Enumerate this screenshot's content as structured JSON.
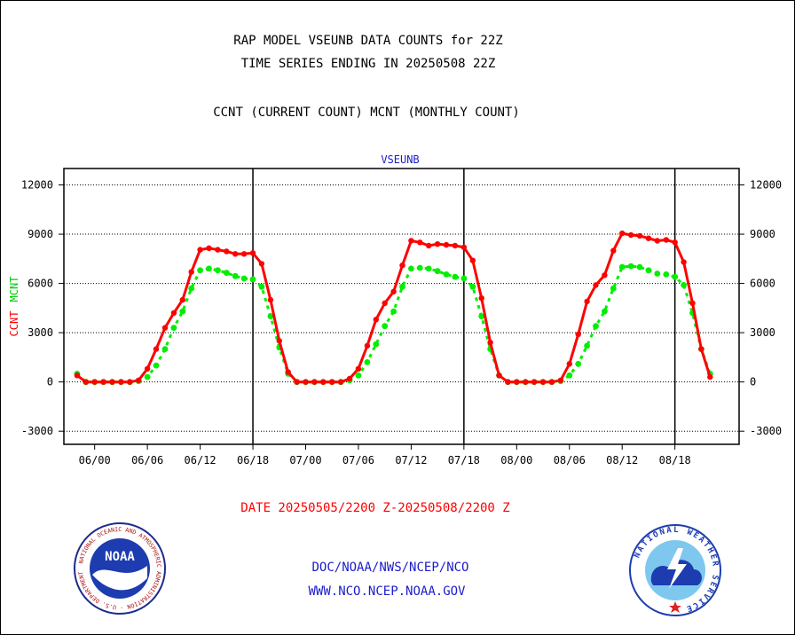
{
  "header": {
    "title_line1": "RAP MODEL VSEUNB DATA COUNTS for 22Z",
    "title_line2": "TIME SERIES ENDING IN 20250508 22Z",
    "subtitle": "CCNT (CURRENT COUNT) MCNT (MONTHLY COUNT)"
  },
  "footer": {
    "date_range": "DATE 20250505/2200 Z-20250508/2200 Z",
    "org": "DOC/NOAA/NWS/NCEP/NCO",
    "website": "WWW.NCO.NCEP.NOAA.GOV"
  },
  "logos": {
    "noaa": {
      "text": "NOAA",
      "ring_text": "NATIONAL OCEANIC AND ATMOSPHERIC ADMINISTRATION · U.S. DEPARTMENT OF COMMERCE"
    },
    "nws": {
      "ring_text": "NATIONAL WEATHER SERVICE"
    }
  },
  "colors": {
    "ccnt": "#ff0000",
    "mcnt": "#00ee00",
    "title_blue": "#1c1ccc",
    "grid": "#000000"
  },
  "chart_data": {
    "type": "line",
    "title": "VSEUNB",
    "ylabel_left": {
      "ccnt": "CCNT",
      "mcnt": "MCNT"
    },
    "ylim": [
      -3800,
      13000
    ],
    "yticks": [
      -3000,
      0,
      3000,
      6000,
      9000,
      12000
    ],
    "ytick_labels": [
      "-3000",
      "0",
      "3000",
      "6000",
      "9000",
      "12000"
    ],
    "xlim": [
      -3.5,
      73.3
    ],
    "xticks": [
      0,
      6,
      12,
      18,
      24,
      30,
      36,
      42,
      48,
      54,
      60,
      66
    ],
    "xtick_labels": [
      "06/00",
      "06/06",
      "06/12",
      "06/18",
      "07/00",
      "07/06",
      "07/12",
      "07/18",
      "08/00",
      "08/06",
      "08/12",
      "08/18"
    ],
    "day_dividers": [
      18,
      42,
      66
    ],
    "grid": true,
    "series": [
      {
        "name": "CCNT",
        "color": "#ff0000",
        "x": [
          -2,
          -1,
          0,
          1,
          2,
          3,
          4,
          5,
          6,
          7,
          8,
          9,
          10,
          11,
          12,
          13,
          14,
          15,
          16,
          17,
          18,
          19,
          20,
          21,
          22,
          23,
          24,
          25,
          26,
          27,
          28,
          29,
          30,
          31,
          32,
          33,
          34,
          35,
          36,
          37,
          38,
          39,
          40,
          41,
          42,
          43,
          44,
          45,
          46,
          47,
          48,
          49,
          50,
          51,
          52,
          53,
          54,
          55,
          56,
          57,
          58,
          59,
          60,
          61,
          62,
          63,
          64,
          65,
          66,
          67,
          68,
          69,
          70
        ],
        "values": [
          400,
          0,
          0,
          0,
          0,
          0,
          0,
          100,
          800,
          2000,
          3300,
          4200,
          5000,
          6700,
          8050,
          8150,
          8050,
          7950,
          7800,
          7800,
          7850,
          7200,
          5000,
          2500,
          600,
          0,
          0,
          0,
          0,
          0,
          0,
          200,
          800,
          2200,
          3800,
          4800,
          5500,
          7100,
          8600,
          8500,
          8300,
          8400,
          8350,
          8300,
          8200,
          7400,
          5100,
          2400,
          400,
          0,
          0,
          0,
          0,
          0,
          0,
          100,
          1100,
          2900,
          4900,
          5900,
          6500,
          8000,
          9050,
          8950,
          8900,
          8750,
          8600,
          8650,
          8500,
          7300,
          4800,
          2000,
          300
        ]
      },
      {
        "name": "MCNT",
        "color": "#00ee00",
        "x": [
          -2,
          -1,
          0,
          1,
          2,
          3,
          4,
          5,
          6,
          7,
          8,
          9,
          10,
          11,
          12,
          13,
          14,
          15,
          16,
          17,
          18,
          19,
          20,
          21,
          22,
          23,
          24,
          25,
          26,
          27,
          28,
          29,
          30,
          31,
          32,
          33,
          34,
          35,
          36,
          37,
          38,
          39,
          40,
          41,
          42,
          43,
          44,
          45,
          46,
          47,
          48,
          49,
          50,
          51,
          52,
          53,
          54,
          55,
          56,
          57,
          58,
          59,
          60,
          61,
          62,
          63,
          64,
          65,
          66,
          67,
          68,
          69,
          70
        ],
        "values": [
          500,
          0,
          0,
          0,
          0,
          0,
          0,
          50,
          300,
          1000,
          2000,
          3300,
          4300,
          5700,
          6800,
          6900,
          6800,
          6650,
          6450,
          6300,
          6250,
          5800,
          4000,
          2100,
          500,
          0,
          0,
          0,
          0,
          0,
          0,
          100,
          400,
          1200,
          2300,
          3400,
          4300,
          5800,
          6900,
          6950,
          6900,
          6750,
          6550,
          6400,
          6300,
          5800,
          4000,
          2000,
          400,
          0,
          0,
          0,
          0,
          0,
          0,
          50,
          400,
          1100,
          2200,
          3400,
          4300,
          5700,
          7000,
          7050,
          7000,
          6800,
          6600,
          6550,
          6400,
          5900,
          4200,
          2000,
          500
        ]
      }
    ]
  }
}
